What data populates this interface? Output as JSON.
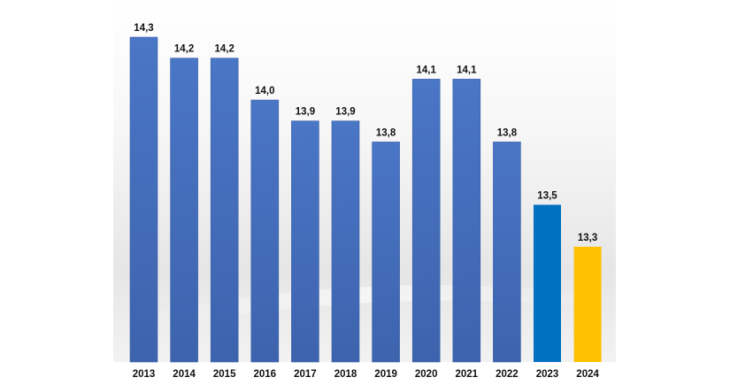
{
  "chart_data": {
    "type": "bar",
    "categories": [
      "2013",
      "2014",
      "2015",
      "2016",
      "2017",
      "2018",
      "2019",
      "2020",
      "2021",
      "2022",
      "2023",
      "2024"
    ],
    "values": [
      14.3,
      14.2,
      14.2,
      14.0,
      13.9,
      13.9,
      13.8,
      14.1,
      14.1,
      13.8,
      13.5,
      13.3
    ],
    "value_labels": [
      "14,3",
      "14,2",
      "14,2",
      "14,0",
      "13,9",
      "13,9",
      "13,8",
      "14,1",
      "14,1",
      "13,8",
      "13,5",
      "13,3"
    ],
    "title": "",
    "xlabel": "",
    "ylabel": "",
    "ylim": [
      12.75,
      14.3
    ],
    "grid": false,
    "legend": "none",
    "colors": {
      "default": "#4472c4",
      "2023": "#0070c0",
      "2024": "#ffc000"
    }
  }
}
